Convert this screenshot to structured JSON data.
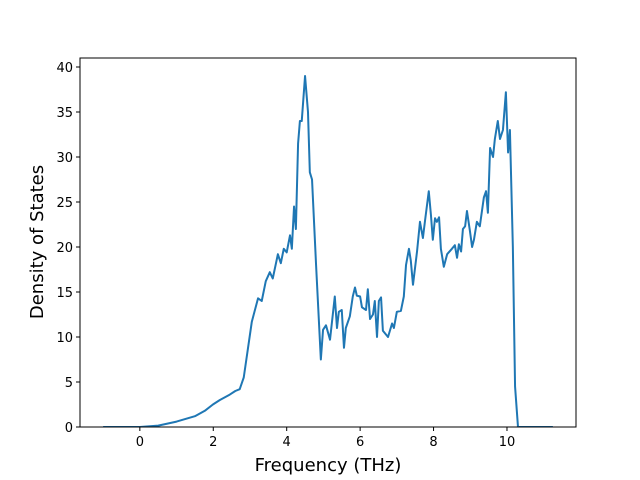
{
  "chart_data": {
    "type": "line",
    "x_label": "Frequency (THz)",
    "y_label": "Density of States",
    "x": [
      -1.0,
      -0.5,
      0.0,
      0.5,
      1.0,
      1.5,
      1.77,
      1.99,
      2.18,
      2.45,
      2.6,
      2.72,
      2.83,
      2.94,
      3.05,
      3.22,
      3.32,
      3.43,
      3.54,
      3.62,
      3.76,
      3.84,
      3.92,
      4.0,
      4.09,
      4.14,
      4.2,
      4.25,
      4.31,
      4.36,
      4.41,
      4.5,
      4.58,
      4.63,
      4.69,
      4.8,
      4.93,
      4.99,
      5.07,
      5.18,
      5.31,
      5.37,
      5.42,
      5.5,
      5.56,
      5.61,
      5.72,
      5.8,
      5.86,
      5.91,
      6.0,
      6.05,
      6.16,
      6.21,
      6.27,
      6.35,
      6.4,
      6.46,
      6.51,
      6.57,
      6.62,
      6.76,
      6.87,
      6.92,
      7.0,
      7.11,
      7.19,
      7.25,
      7.33,
      7.38,
      7.44,
      7.55,
      7.63,
      7.71,
      7.77,
      7.87,
      7.93,
      7.98,
      8.04,
      8.09,
      8.15,
      8.2,
      8.28,
      8.37,
      8.5,
      8.58,
      8.64,
      8.69,
      8.75,
      8.8,
      8.86,
      8.91,
      8.99,
      9.05,
      9.1,
      9.18,
      9.26,
      9.37,
      9.43,
      9.48,
      9.54,
      9.62,
      9.67,
      9.75,
      9.81,
      9.89,
      9.97,
      10.03,
      10.08,
      10.16,
      10.22,
      10.3,
      11.25
    ],
    "series": [
      {
        "color": "#1f77b4",
        "values": [
          0,
          0,
          0,
          0.15,
          0.6,
          1.2,
          1.8,
          2.5,
          3.0,
          3.6,
          4.0,
          4.2,
          5.5,
          8.6,
          11.7,
          14.3,
          14.0,
          16.2,
          17.2,
          16.5,
          19.2,
          18.2,
          19.8,
          19.4,
          21.3,
          19.8,
          24.5,
          22.0,
          31.5,
          34.0,
          34.0,
          39.0,
          35.0,
          28.3,
          27.5,
          18.0,
          7.5,
          10.8,
          11.3,
          9.7,
          14.5,
          11.0,
          12.8,
          13.0,
          8.8,
          11.0,
          12.3,
          14.5,
          15.5,
          14.6,
          14.5,
          13.3,
          13.0,
          15.3,
          12.0,
          12.5,
          14.0,
          10.0,
          14.0,
          14.4,
          10.7,
          10.0,
          11.5,
          11.0,
          12.8,
          12.9,
          14.5,
          18.0,
          19.8,
          18.5,
          15.8,
          19.5,
          22.8,
          21.0,
          23.0,
          26.2,
          23.5,
          20.8,
          23.2,
          22.8,
          23.3,
          19.8,
          17.8,
          19.2,
          19.8,
          20.2,
          18.8,
          20.3,
          19.5,
          22.0,
          22.3,
          24.0,
          21.8,
          20.0,
          20.8,
          22.8,
          22.3,
          25.5,
          26.2,
          23.8,
          31.0,
          30.0,
          32.0,
          34.0,
          32.0,
          33.0,
          37.2,
          30.5,
          33.0,
          20.0,
          4.5,
          0,
          0
        ]
      }
    ],
    "xlim": [
      -1.63,
      11.88
    ],
    "xticks": [
      0,
      2,
      4,
      6,
      8,
      10
    ],
    "ylim": [
      0,
      41
    ],
    "yticks": [
      0,
      5,
      10,
      15,
      20,
      25,
      30,
      35,
      40
    ],
    "grid": false
  }
}
